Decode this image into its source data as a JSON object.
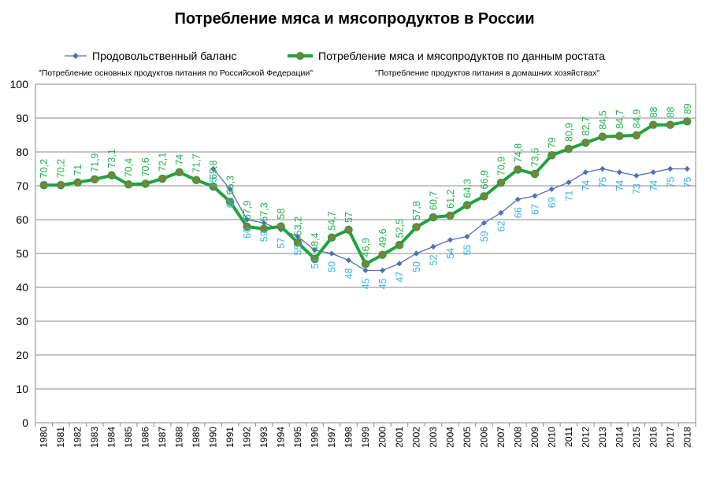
{
  "chart_data": {
    "type": "line",
    "title": "Потребление мяса и мясопродуктов в России",
    "ylim": [
      0,
      100
    ],
    "yticks": [
      0,
      10,
      20,
      30,
      40,
      50,
      60,
      70,
      80,
      90,
      100
    ],
    "grid": true,
    "legend_position": "top",
    "x": [
      "1980",
      "1981",
      "1982",
      "1983",
      "1984",
      "1985",
      "1986",
      "1987",
      "1988",
      "1989",
      "1990",
      "1991",
      "1992",
      "1993",
      "1994",
      "1995",
      "1996",
      "1997",
      "1998",
      "1999",
      "2000",
      "2001",
      "2002",
      "2003",
      "2004",
      "2005",
      "2006",
      "2007",
      "2008",
      "2009",
      "2010",
      "2011",
      "2012",
      "2013",
      "2014",
      "2015",
      "2016",
      "2017",
      "2018"
    ],
    "notes": [
      "\"Потребление основных продуктов питания по Российской Федерации\"",
      "\"Потребление продуктов питания в домашних хозяйствах\""
    ],
    "series": [
      {
        "name": "Продовольственный  баланс",
        "color": "#4f6fb8",
        "label_color": "#33b5e5",
        "values": [
          70.2,
          70.2,
          71,
          71.9,
          73.1,
          70.4,
          70.6,
          72.1,
          74,
          71.7,
          75,
          69,
          60,
          59,
          57,
          55,
          51,
          50,
          48,
          45,
          45,
          47,
          50,
          52,
          54,
          55,
          59,
          62,
          66,
          67,
          69,
          71,
          74,
          75,
          74,
          73,
          74,
          75,
          75
        ],
        "labels": [
          "",
          "",
          "",
          "",
          "",
          "",
          "",
          "",
          "",
          "",
          "75",
          "69",
          "60",
          "59",
          "57",
          "55",
          "51",
          "50",
          "48",
          "45",
          "45",
          "47",
          "50",
          "52",
          "54",
          "55",
          "59",
          "62",
          "66",
          "67",
          "69",
          "71",
          "74",
          "75",
          "74",
          "73",
          "74",
          "75",
          "75"
        ]
      },
      {
        "name": "Потребление  мяса и мясопродуктов по данным ростата",
        "color": "#1fa33c",
        "marker_color": "#8a7a3a",
        "label_color": "#22b14c",
        "values": [
          70.2,
          70.2,
          71,
          71.9,
          73.1,
          70.4,
          70.6,
          72.1,
          74,
          71.7,
          69.8,
          65.3,
          57.9,
          57.3,
          58,
          53.2,
          48.4,
          54.7,
          57,
          46.9,
          49.6,
          52.5,
          57.8,
          60.7,
          61.2,
          64.3,
          66.9,
          70.9,
          74.8,
          73.5,
          79,
          80.9,
          82.7,
          84.5,
          84.7,
          84.9,
          88,
          88,
          89
        ],
        "labels": [
          "70,2",
          "70,2",
          "71",
          "71,9",
          "73,1",
          "70,4",
          "70,6",
          "72,1",
          "74",
          "71,7",
          "69,8",
          "65,3",
          "57,9",
          "57,3",
          "58",
          "53,2",
          "48,4",
          "54,7",
          "57",
          "46,9",
          "49,6",
          "52,5",
          "57,8",
          "60,7",
          "61,2",
          "64,3",
          "66,9",
          "70,9",
          "74,8",
          "73,5",
          "79",
          "80,9",
          "82,7",
          "84,5",
          "84,7",
          "84,9",
          "88",
          "88",
          "89"
        ]
      }
    ]
  }
}
